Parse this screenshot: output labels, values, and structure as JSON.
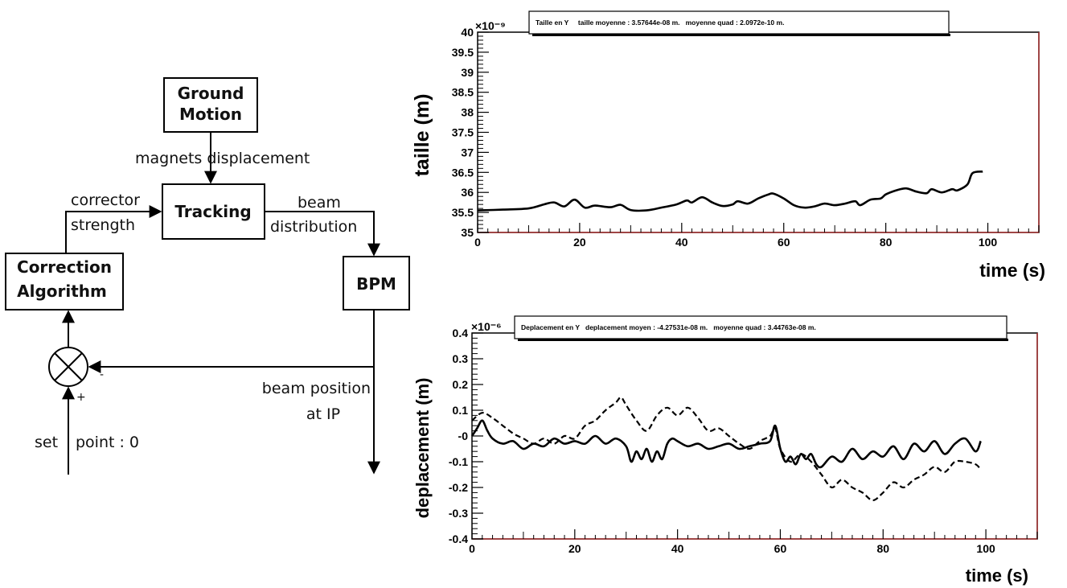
{
  "diagram": {
    "boxes": {
      "ground_motion": [
        "Ground",
        "Motion"
      ],
      "tracking": "Tracking",
      "correction": [
        "Correction",
        "Algorithm"
      ],
      "bpm": "BPM"
    },
    "labels": {
      "magnets_displacement": "magnets displacement",
      "corrector": "corrector",
      "strength": "strength",
      "beam": "beam",
      "distribution": "distribution",
      "beam_position": "beam position",
      "at_ip": "at IP",
      "set_point_a": "set",
      "set_point_b": "point : 0",
      "minus": "-",
      "plus": "+"
    }
  },
  "chart_data": [
    {
      "type": "line",
      "title": "Taille en Y     taille moyenne : 3.57644e-08 m.   moyenne quad : 2.0972e-10 m.",
      "xlabel": "time (s)",
      "ylabel": "taille (m)",
      "y_exponent": "×10⁻⁹",
      "xlim": [
        0,
        110
      ],
      "ylim": [
        35,
        40
      ],
      "xticks": [
        "0",
        "20",
        "40",
        "60",
        "80",
        "100"
      ],
      "yticks": [
        "35",
        "35.5",
        "36",
        "36.5",
        "37",
        "37.5",
        "38",
        "38.5",
        "39",
        "39.5",
        "40"
      ],
      "series": [
        {
          "style": "solid",
          "x": [
            0,
            5,
            10,
            13,
            15,
            17,
            19,
            21,
            23,
            26,
            28,
            30,
            33,
            36,
            39,
            41,
            42,
            44,
            46,
            48,
            50,
            51,
            53,
            55,
            57,
            58,
            60,
            62,
            64,
            66,
            68,
            70,
            72,
            74,
            75,
            77,
            79,
            80,
            82,
            84,
            86,
            88,
            89,
            91,
            93,
            94,
            96,
            97,
            99
          ],
          "y": [
            35.55,
            35.57,
            35.6,
            35.7,
            35.75,
            35.65,
            35.82,
            35.62,
            35.67,
            35.63,
            35.69,
            35.56,
            35.55,
            35.62,
            35.7,
            35.8,
            35.75,
            35.88,
            35.75,
            35.66,
            35.7,
            35.78,
            35.72,
            35.85,
            35.95,
            35.97,
            35.85,
            35.68,
            35.62,
            35.65,
            35.72,
            35.68,
            35.72,
            35.78,
            35.68,
            35.82,
            35.85,
            35.95,
            36.05,
            36.1,
            36.02,
            35.98,
            36.08,
            36.0,
            36.08,
            36.05,
            36.2,
            36.48,
            36.52
          ]
        }
      ]
    },
    {
      "type": "line",
      "title": "Deplacement en Y   deplacement moyen : -4.27531e-08 m.   moyenne quad : 3.44763e-08 m.",
      "xlabel": "time (s)",
      "ylabel": "deplacement (m)",
      "y_exponent": "×10⁻⁶",
      "xlim": [
        0,
        110
      ],
      "ylim": [
        -0.4,
        0.4
      ],
      "xticks": [
        "0",
        "20",
        "40",
        "60",
        "80",
        "100"
      ],
      "yticks": [
        "-0.4",
        "-0.3",
        "-0.2",
        "-0.1",
        "-0",
        "0.1",
        "0.2",
        "0.3",
        "0.4"
      ],
      "series": [
        {
          "style": "solid",
          "x": [
            0,
            1,
            2,
            3,
            4,
            6,
            8,
            10,
            12,
            14,
            16,
            18,
            20,
            22,
            24,
            26,
            28,
            30,
            31,
            32,
            33,
            34,
            35,
            36,
            37,
            38,
            39,
            40,
            42,
            44,
            46,
            48,
            50,
            52,
            54,
            56,
            58,
            59,
            60,
            61,
            62,
            63,
            64,
            65,
            66,
            67,
            68,
            70,
            72,
            74,
            76,
            78,
            80,
            82,
            84,
            86,
            88,
            90,
            92,
            94,
            96,
            98,
            99
          ],
          "y": [
            0.0,
            0.03,
            0.06,
            0.02,
            -0.01,
            -0.03,
            -0.02,
            -0.05,
            -0.03,
            -0.04,
            -0.01,
            -0.03,
            -0.02,
            -0.03,
            0.0,
            -0.03,
            -0.01,
            -0.04,
            -0.1,
            -0.06,
            -0.09,
            -0.05,
            -0.1,
            -0.06,
            -0.09,
            -0.03,
            -0.01,
            -0.02,
            -0.04,
            -0.03,
            -0.05,
            -0.04,
            -0.03,
            -0.05,
            -0.04,
            -0.03,
            -0.02,
            0.04,
            -0.05,
            -0.1,
            -0.08,
            -0.11,
            -0.07,
            -0.09,
            -0.07,
            -0.11,
            -0.12,
            -0.08,
            -0.1,
            -0.05,
            -0.09,
            -0.06,
            -0.08,
            -0.04,
            -0.09,
            -0.03,
            -0.06,
            -0.02,
            -0.07,
            -0.03,
            -0.01,
            -0.06,
            -0.02
          ]
        },
        {
          "style": "dashed",
          "x": [
            0,
            2,
            4,
            6,
            8,
            10,
            12,
            14,
            16,
            18,
            20,
            22,
            24,
            26,
            28,
            29,
            30,
            32,
            34,
            36,
            38,
            40,
            42,
            44,
            46,
            48,
            50,
            52,
            54,
            56,
            58,
            59,
            60,
            62,
            64,
            66,
            68,
            70,
            72,
            74,
            76,
            78,
            80,
            82,
            84,
            86,
            88,
            90,
            92,
            94,
            96,
            98,
            99
          ],
          "y": [
            0.06,
            0.09,
            0.07,
            0.04,
            0.01,
            -0.01,
            -0.03,
            -0.01,
            -0.03,
            0.0,
            -0.01,
            0.04,
            0.06,
            0.1,
            0.13,
            0.15,
            0.12,
            0.06,
            0.02,
            0.08,
            0.11,
            0.08,
            0.11,
            0.07,
            0.02,
            0.03,
            0.0,
            -0.03,
            -0.05,
            -0.02,
            0.0,
            0.03,
            -0.05,
            -0.1,
            -0.07,
            -0.1,
            -0.15,
            -0.2,
            -0.17,
            -0.2,
            -0.22,
            -0.25,
            -0.22,
            -0.18,
            -0.2,
            -0.17,
            -0.15,
            -0.12,
            -0.14,
            -0.1,
            -0.1,
            -0.11,
            -0.13
          ]
        }
      ]
    }
  ]
}
